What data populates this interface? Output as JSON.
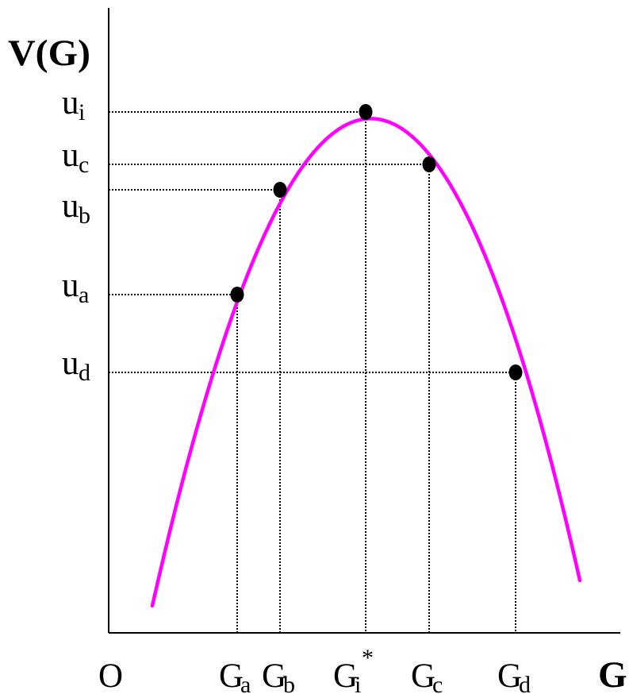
{
  "diagram": {
    "y_axis_label": "V(G)",
    "x_axis_label": "G",
    "origin_label": "O",
    "curve_color": "#ff00ff",
    "y_ticks": [
      {
        "main": "u",
        "sub": "i"
      },
      {
        "main": "u",
        "sub": "c"
      },
      {
        "main": "u",
        "sub": "b"
      },
      {
        "main": "u",
        "sub": "a"
      },
      {
        "main": "u",
        "sub": "d"
      }
    ],
    "x_ticks": [
      {
        "main": "G",
        "sub": "a",
        "sup": ""
      },
      {
        "main": "G",
        "sub": "b",
        "sup": ""
      },
      {
        "main": "G",
        "sub": "i",
        "sup": "*"
      },
      {
        "main": "G",
        "sub": "c",
        "sup": ""
      },
      {
        "main": "G",
        "sub": "d",
        "sup": ""
      }
    ]
  }
}
